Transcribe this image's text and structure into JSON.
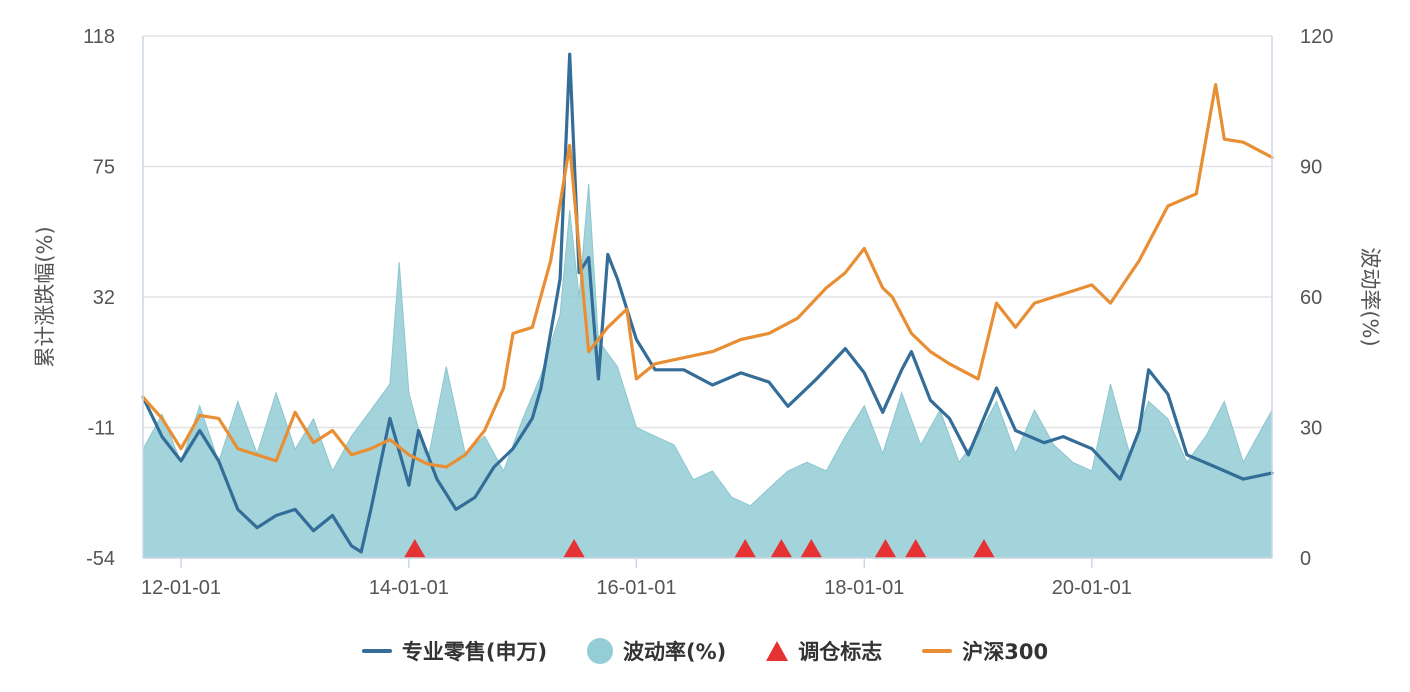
{
  "chart_data": {
    "type": "line",
    "title": "",
    "ylabel_left": "累计涨跌幅(%)",
    "ylabel_right": "波动率(%)",
    "y_left": {
      "ticks": [
        118,
        75,
        32,
        -11,
        -54
      ],
      "min": -54,
      "max": 118
    },
    "y_right": {
      "ticks": [
        120,
        90,
        60,
        30,
        0
      ],
      "min": 0,
      "max": 120
    },
    "x_range": [
      "2011-09-01",
      "2021-08-01"
    ],
    "x_ticks": [
      {
        "date": "2012-01-01",
        "label": "12-01-01"
      },
      {
        "date": "2014-01-01",
        "label": "14-01-01"
      },
      {
        "date": "2016-01-01",
        "label": "16-01-01"
      },
      {
        "date": "2018-01-01",
        "label": "18-01-01"
      },
      {
        "date": "2020-01-01",
        "label": "20-01-01"
      }
    ],
    "grid": true,
    "legend_position": "bottom",
    "series": [
      {
        "name": "专业零售(申万)",
        "axis": "left",
        "kind": "line",
        "color": "#336d98",
        "points": [
          [
            "2011-09-01",
            -1
          ],
          [
            "2011-11-01",
            -14
          ],
          [
            "2012-01-01",
            -22
          ],
          [
            "2012-03-01",
            -12
          ],
          [
            "2012-05-01",
            -22
          ],
          [
            "2012-07-01",
            -38
          ],
          [
            "2012-09-01",
            -44
          ],
          [
            "2012-11-01",
            -40
          ],
          [
            "2013-01-01",
            -38
          ],
          [
            "2013-03-01",
            -45
          ],
          [
            "2013-05-01",
            -40
          ],
          [
            "2013-07-01",
            -50
          ],
          [
            "2013-08-01",
            -52
          ],
          [
            "2013-09-01",
            -38
          ],
          [
            "2013-11-01",
            -8
          ],
          [
            "2014-01-01",
            -30
          ],
          [
            "2014-02-01",
            -12
          ],
          [
            "2014-04-01",
            -28
          ],
          [
            "2014-06-01",
            -38
          ],
          [
            "2014-08-01",
            -34
          ],
          [
            "2014-10-01",
            -24
          ],
          [
            "2014-12-01",
            -18
          ],
          [
            "2015-02-01",
            -8
          ],
          [
            "2015-03-01",
            2
          ],
          [
            "2015-05-01",
            38
          ],
          [
            "2015-06-01",
            112
          ],
          [
            "2015-07-01",
            40
          ],
          [
            "2015-08-01",
            45
          ],
          [
            "2015-09-01",
            5
          ],
          [
            "2015-10-01",
            46
          ],
          [
            "2015-11-01",
            38
          ],
          [
            "2016-01-01",
            18
          ],
          [
            "2016-03-01",
            8
          ],
          [
            "2016-06-01",
            8
          ],
          [
            "2016-09-01",
            3
          ],
          [
            "2016-12-01",
            7
          ],
          [
            "2017-03-01",
            4
          ],
          [
            "2017-05-01",
            -4
          ],
          [
            "2017-08-01",
            5
          ],
          [
            "2017-11-01",
            15
          ],
          [
            "2018-01-01",
            7
          ],
          [
            "2018-03-01",
            -6
          ],
          [
            "2018-05-01",
            8
          ],
          [
            "2018-06-01",
            14
          ],
          [
            "2018-08-01",
            -2
          ],
          [
            "2018-10-01",
            -8
          ],
          [
            "2018-12-01",
            -20
          ],
          [
            "2019-03-01",
            2
          ],
          [
            "2019-05-01",
            -12
          ],
          [
            "2019-08-01",
            -16
          ],
          [
            "2019-10-01",
            -14
          ],
          [
            "2020-01-01",
            -18
          ],
          [
            "2020-04-01",
            -28
          ],
          [
            "2020-06-01",
            -12
          ],
          [
            "2020-07-01",
            8
          ],
          [
            "2020-09-01",
            0
          ],
          [
            "2020-11-01",
            -20
          ],
          [
            "2021-02-01",
            -24
          ],
          [
            "2021-05-01",
            -28
          ],
          [
            "2021-08-01",
            -26
          ]
        ]
      },
      {
        "name": "沪深300",
        "axis": "left",
        "kind": "line",
        "color": "#e88f35",
        "points": [
          [
            "2011-09-01",
            -1
          ],
          [
            "2011-11-01",
            -8
          ],
          [
            "2012-01-01",
            -18
          ],
          [
            "2012-03-01",
            -7
          ],
          [
            "2012-05-01",
            -8
          ],
          [
            "2012-07-01",
            -18
          ],
          [
            "2012-09-01",
            -20
          ],
          [
            "2012-11-01",
            -22
          ],
          [
            "2013-01-01",
            -6
          ],
          [
            "2013-03-01",
            -16
          ],
          [
            "2013-05-01",
            -12
          ],
          [
            "2013-07-01",
            -20
          ],
          [
            "2013-09-01",
            -18
          ],
          [
            "2013-11-01",
            -15
          ],
          [
            "2014-01-01",
            -20
          ],
          [
            "2014-03-01",
            -23
          ],
          [
            "2014-05-01",
            -24
          ],
          [
            "2014-07-01",
            -20
          ],
          [
            "2014-09-01",
            -12
          ],
          [
            "2014-11-01",
            2
          ],
          [
            "2014-12-01",
            20
          ],
          [
            "2015-02-01",
            22
          ],
          [
            "2015-04-01",
            44
          ],
          [
            "2015-06-01",
            82
          ],
          [
            "2015-07-01",
            48
          ],
          [
            "2015-08-01",
            14
          ],
          [
            "2015-10-01",
            22
          ],
          [
            "2015-12-01",
            28
          ],
          [
            "2016-01-01",
            5
          ],
          [
            "2016-03-01",
            10
          ],
          [
            "2016-06-01",
            12
          ],
          [
            "2016-09-01",
            14
          ],
          [
            "2016-12-01",
            18
          ],
          [
            "2017-03-01",
            20
          ],
          [
            "2017-06-01",
            25
          ],
          [
            "2017-09-01",
            35
          ],
          [
            "2017-11-01",
            40
          ],
          [
            "2018-01-01",
            48
          ],
          [
            "2018-03-01",
            35
          ],
          [
            "2018-04-01",
            32
          ],
          [
            "2018-06-01",
            20
          ],
          [
            "2018-08-01",
            14
          ],
          [
            "2018-10-01",
            10
          ],
          [
            "2019-01-01",
            5
          ],
          [
            "2019-03-01",
            30
          ],
          [
            "2019-05-01",
            22
          ],
          [
            "2019-07-01",
            30
          ],
          [
            "2019-09-01",
            32
          ],
          [
            "2020-01-01",
            36
          ],
          [
            "2020-03-01",
            30
          ],
          [
            "2020-06-01",
            44
          ],
          [
            "2020-09-01",
            62
          ],
          [
            "2020-12-01",
            66
          ],
          [
            "2021-02-01",
            102
          ],
          [
            "2021-03-01",
            84
          ],
          [
            "2021-05-01",
            83
          ],
          [
            "2021-08-01",
            78
          ]
        ]
      },
      {
        "name": "波动率(%)",
        "axis": "right",
        "kind": "area",
        "color": "#94cdd5",
        "points": [
          [
            "2011-09-01",
            25
          ],
          [
            "2011-11-01",
            33
          ],
          [
            "2012-01-01",
            22
          ],
          [
            "2012-03-01",
            35
          ],
          [
            "2012-05-01",
            22
          ],
          [
            "2012-07-01",
            36
          ],
          [
            "2012-09-01",
            24
          ],
          [
            "2012-11-01",
            38
          ],
          [
            "2013-01-01",
            25
          ],
          [
            "2013-03-01",
            32
          ],
          [
            "2013-05-01",
            20
          ],
          [
            "2013-07-01",
            28
          ],
          [
            "2013-09-01",
            34
          ],
          [
            "2013-11-01",
            40
          ],
          [
            "2013-12-01",
            68
          ],
          [
            "2014-01-01",
            38
          ],
          [
            "2014-03-01",
            22
          ],
          [
            "2014-05-01",
            44
          ],
          [
            "2014-07-01",
            24
          ],
          [
            "2014-09-01",
            28
          ],
          [
            "2014-11-01",
            20
          ],
          [
            "2015-01-01",
            32
          ],
          [
            "2015-03-01",
            42
          ],
          [
            "2015-05-01",
            56
          ],
          [
            "2015-06-01",
            80
          ],
          [
            "2015-07-01",
            60
          ],
          [
            "2015-08-01",
            86
          ],
          [
            "2015-09-01",
            50
          ],
          [
            "2015-11-01",
            44
          ],
          [
            "2016-01-01",
            30
          ],
          [
            "2016-03-01",
            28
          ],
          [
            "2016-05-01",
            26
          ],
          [
            "2016-07-01",
            18
          ],
          [
            "2016-09-01",
            20
          ],
          [
            "2016-11-01",
            14
          ],
          [
            "2017-01-01",
            12
          ],
          [
            "2017-03-01",
            16
          ],
          [
            "2017-05-01",
            20
          ],
          [
            "2017-07-01",
            22
          ],
          [
            "2017-09-01",
            20
          ],
          [
            "2017-11-01",
            28
          ],
          [
            "2018-01-01",
            35
          ],
          [
            "2018-03-01",
            24
          ],
          [
            "2018-05-01",
            38
          ],
          [
            "2018-07-01",
            26
          ],
          [
            "2018-09-01",
            34
          ],
          [
            "2018-11-01",
            22
          ],
          [
            "2019-01-01",
            28
          ],
          [
            "2019-03-01",
            36
          ],
          [
            "2019-05-01",
            24
          ],
          [
            "2019-07-01",
            34
          ],
          [
            "2019-09-01",
            26
          ],
          [
            "2019-11-01",
            22
          ],
          [
            "2020-01-01",
            20
          ],
          [
            "2020-03-01",
            40
          ],
          [
            "2020-05-01",
            24
          ],
          [
            "2020-07-01",
            36
          ],
          [
            "2020-09-01",
            32
          ],
          [
            "2020-11-01",
            22
          ],
          [
            "2021-01-01",
            28
          ],
          [
            "2021-03-01",
            36
          ],
          [
            "2021-05-01",
            22
          ],
          [
            "2021-07-01",
            30
          ],
          [
            "2021-08-01",
            34
          ]
        ]
      },
      {
        "name": "调仓标志",
        "axis": "none",
        "kind": "marker",
        "color": "#e63232",
        "dates": [
          "2014-01-20",
          "2015-06-15",
          "2016-12-15",
          "2017-04-10",
          "2017-07-15",
          "2018-03-10",
          "2018-06-15",
          "2019-01-20"
        ]
      }
    ]
  },
  "legend": {
    "items": [
      {
        "label": "专业零售(申万)",
        "symbol": "line",
        "color": "#336d98"
      },
      {
        "label": "波动率(%)",
        "symbol": "circle",
        "color": "#94cdd5"
      },
      {
        "label": "调仓标志",
        "symbol": "triangle",
        "color": "#e63232"
      },
      {
        "label": "沪深300",
        "symbol": "line",
        "color": "#e88f35"
      }
    ]
  }
}
